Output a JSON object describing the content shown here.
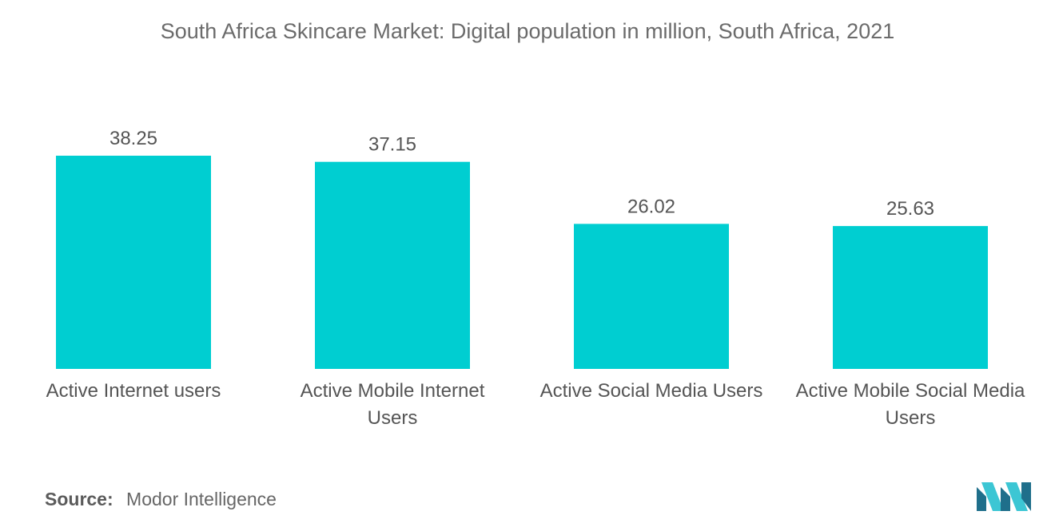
{
  "chart_title": "South Africa Skincare Market: Digital population in million, South Africa, 2021",
  "source_label": "Source:",
  "source_text": "Modor Intelligence",
  "colors": {
    "bar": "#00CED1",
    "text": "#555555",
    "logo_dark": "#1f6f8b",
    "logo_light": "#3cc6d4"
  },
  "chart_data": {
    "type": "bar",
    "title": "South Africa Skincare Market: Digital population in million, South Africa, 2021",
    "categories": [
      "Active Internet users",
      "Active Mobile Internet Users",
      "Active Social Media Users",
      "Active Mobile Social Media Users"
    ],
    "category_lines": [
      [
        "Active Internet users"
      ],
      [
        "Active Mobile Internet",
        "Users"
      ],
      [
        "Active Social Media Users"
      ],
      [
        "Active Mobile Social Media",
        "Users"
      ]
    ],
    "values": [
      38.25,
      37.15,
      26.02,
      25.63
    ],
    "value_labels": [
      "38.25",
      "37.15",
      "26.02",
      "25.63"
    ],
    "ylim": [
      0,
      38.25
    ],
    "grid": false,
    "legend": "none"
  }
}
